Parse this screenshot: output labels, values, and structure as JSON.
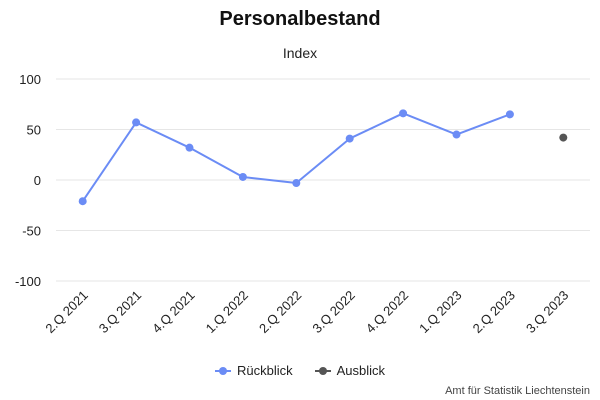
{
  "chart_data": {
    "type": "line",
    "title": "Personalbestand",
    "subtitle": "Index",
    "categories": [
      "2.Q 2021",
      "3.Q 2021",
      "4.Q 2021",
      "1.Q 2022",
      "2.Q 2022",
      "3.Q 2022",
      "4.Q 2022",
      "1.Q 2023",
      "2.Q 2023",
      "3.Q 2023"
    ],
    "series": [
      {
        "name": "Rückblick",
        "color": "#6b8cf5",
        "values": [
          -21,
          57,
          32,
          3,
          -3,
          41,
          66,
          45,
          65,
          null
        ]
      },
      {
        "name": "Ausblick",
        "color": "#555555",
        "values": [
          null,
          null,
          null,
          null,
          null,
          null,
          null,
          null,
          null,
          42
        ]
      }
    ],
    "ylim": [
      -100,
      100
    ],
    "yticks": [
      100,
      50,
      0,
      -50,
      -100
    ],
    "grid": true,
    "legend": "bottom-center"
  },
  "credits": "Amt für Statistik Liechtenstein"
}
